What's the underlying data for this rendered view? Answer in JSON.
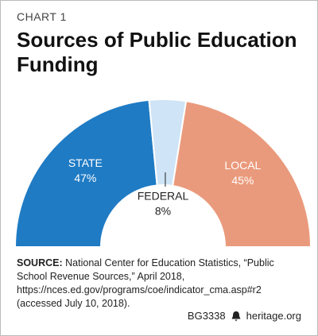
{
  "chart_data": {
    "type": "pie",
    "kicker": "CHART 1",
    "title": "Sources of Public Education Funding",
    "categories": [
      "STATE",
      "FEDERAL",
      "LOCAL"
    ],
    "values": [
      47,
      8,
      45
    ],
    "value_labels": [
      "47%",
      "8%",
      "45%"
    ],
    "colors": [
      "#1f7bc4",
      "#cfe4f6",
      "#ea9a7c"
    ],
    "source_label": "SOURCE:",
    "source": "National Center for Education Statistics, “Public School Revenue Sources,” April 2018, https://nces.ed.gov/programs/coe/indicator_cma.asp#r2 (accessed July 10, 2018).",
    "code": "BG3338",
    "site": "heritage.org"
  }
}
